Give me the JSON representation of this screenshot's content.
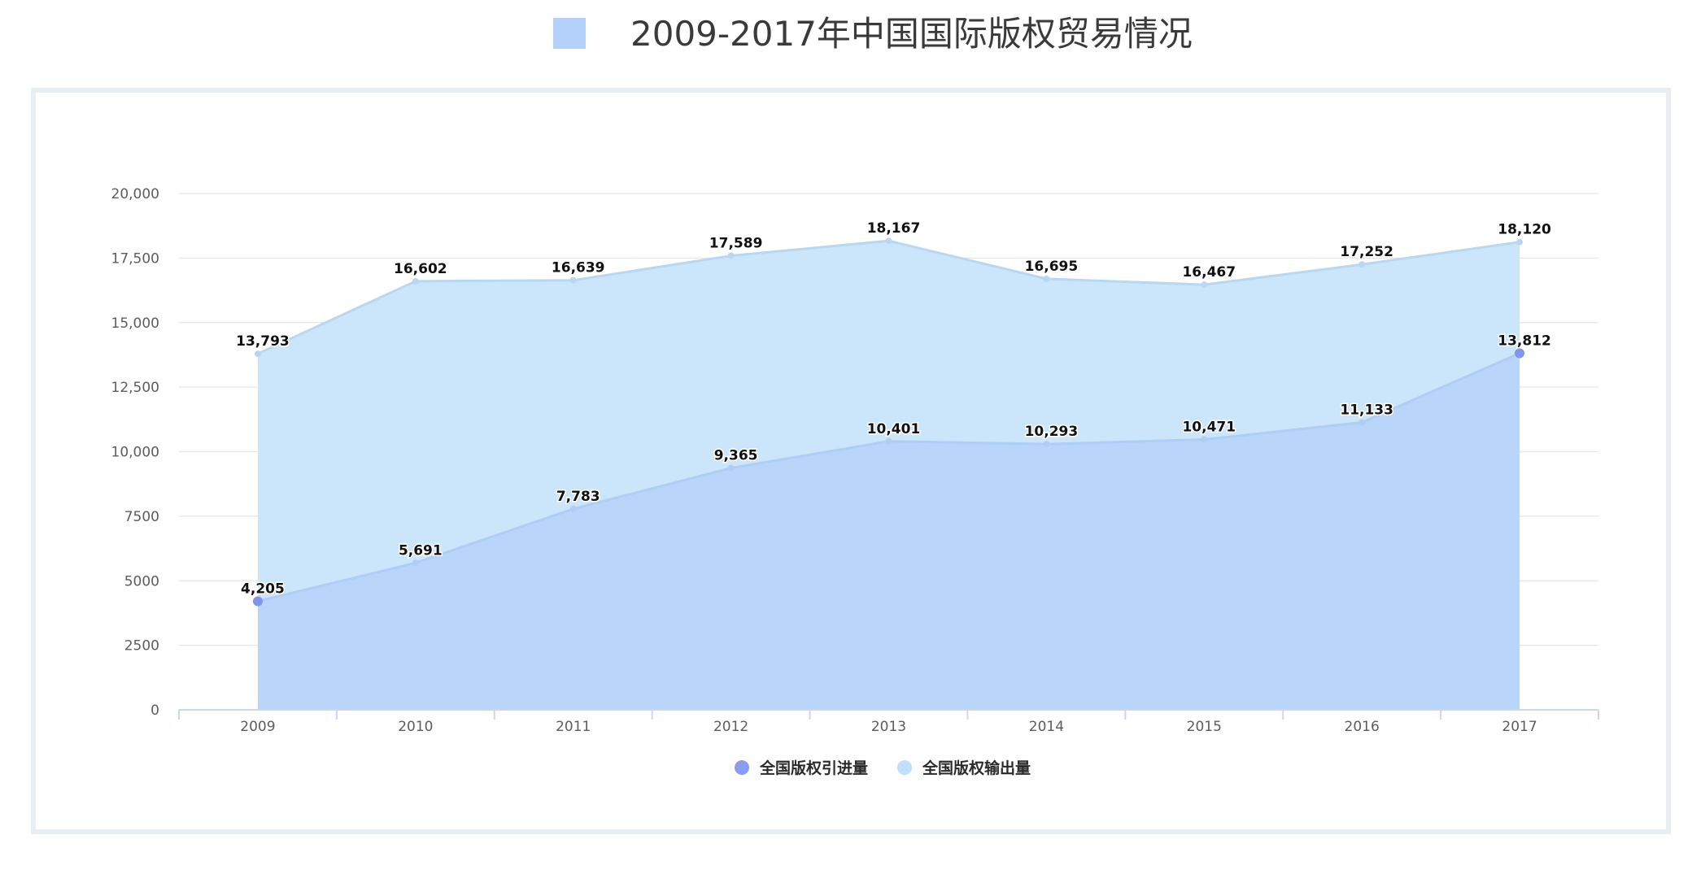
{
  "page": {
    "title": "2009-2017年中国国际版权贸易情况"
  },
  "colors": {
    "title_swatch": "#b3d1fb",
    "grid": "#e3e7ec",
    "axis": "#c9d8ee"
  },
  "chart_data": {
    "type": "area",
    "title": "2009-2017年中国国际版权贸易情况",
    "xlabel": "",
    "ylabel": "",
    "categories": [
      "2009",
      "2010",
      "2011",
      "2012",
      "2013",
      "2014",
      "2015",
      "2016",
      "2017"
    ],
    "ylim": [
      0,
      20000
    ],
    "y_ticks": [
      0,
      2500,
      5000,
      7500,
      10000,
      12500,
      15000,
      17500,
      20000
    ],
    "y_tick_labels": [
      "0",
      "2500",
      "5000",
      "7500",
      "10,000",
      "12,500",
      "15,000",
      "17,500",
      "20,000"
    ],
    "grid": true,
    "legend_position": "bottom-center",
    "series": [
      {
        "name": "全国版权输出量",
        "values": [
          13793,
          16602,
          16639,
          17589,
          18167,
          16695,
          16467,
          17252,
          18120
        ],
        "value_labels": [
          "13,793",
          "16,602",
          "16,639",
          "17,589",
          "18,167",
          "16,695",
          "16,467",
          "17,252",
          "18,120"
        ],
        "fill_color": "#cbe5fa",
        "line_color": "#b6d8f5",
        "marker_color": "#bcdcf7",
        "legend_color": "#bfe0fa"
      },
      {
        "name": "全国版权引进量",
        "values": [
          4205,
          5691,
          7783,
          9365,
          10401,
          10293,
          10471,
          11133,
          13812
        ],
        "value_labels": [
          "4,205",
          "5,691",
          "7,783",
          "9,365",
          "10,401",
          "10,293",
          "10,471",
          "11,133",
          "13,812"
        ],
        "fill_color": "#b7d4fa",
        "line_color": "#aecdf7",
        "marker_color": "#7f95ee",
        "legend_color": "#8a9df0"
      }
    ],
    "legend_order": [
      "全国版权引进量",
      "全国版权输出量"
    ]
  }
}
